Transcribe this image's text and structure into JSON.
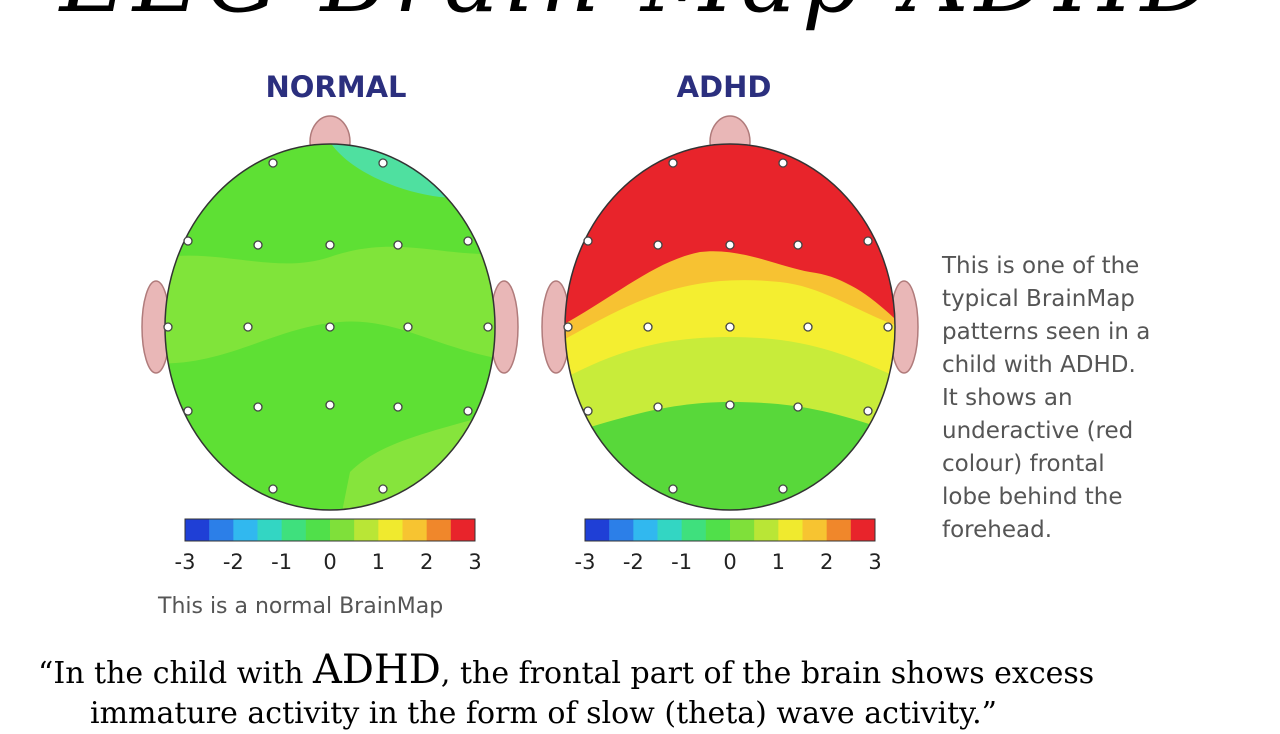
{
  "slide": {
    "title": "EEG Brain Map ADHD"
  },
  "maps": {
    "normal_title": "NORMAL",
    "adhd_title": "ADHD",
    "normal_caption": "This is a normal BrainMap",
    "scale_ticks": [
      "-3",
      "-2",
      "-1",
      "0",
      "1",
      "2",
      "3"
    ],
    "scale_colors": [
      "#1f3fd6",
      "#2c7fe8",
      "#31b8ef",
      "#33d6c3",
      "#3fe07d",
      "#50e04a",
      "#7fe03a",
      "#b9e636",
      "#f0ea2e",
      "#f7c431",
      "#f0872b",
      "#e8242b"
    ]
  },
  "side_note": {
    "lines": [
      "This is one of the",
      "typical BrainMap",
      "patterns seen in a",
      "child with ADHD.",
      "It shows an",
      "underactive (red",
      "colour) frontal",
      "lobe behind the",
      "forehead."
    ]
  },
  "quote": {
    "open": "“In the child with ",
    "emph": "ADHD",
    "rest": ", the frontal part of the brain shows excess",
    "line2": "immature activity in the form of slow (theta) wave activity.”"
  }
}
